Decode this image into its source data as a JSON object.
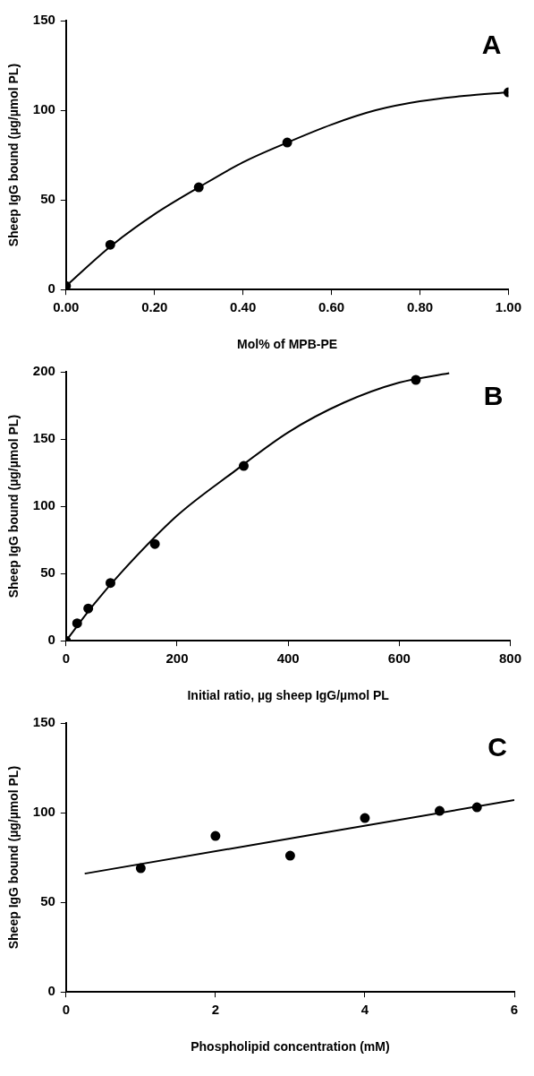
{
  "chart_data": [
    {
      "type": "scatter",
      "xlabel": "Mol% of MPB-PE",
      "ylabel": "Sheep IgG bound (µg/µmol PL)",
      "annotations": [
        "A"
      ],
      "xlim": [
        0,
        1
      ],
      "xticks": [
        {
          "value": 0,
          "label": "0.00"
        },
        {
          "value": 0.2,
          "label": "0.20"
        },
        {
          "value": 0.4,
          "label": "0.40"
        },
        {
          "value": 0.6,
          "label": "0.60"
        },
        {
          "value": 0.8,
          "label": "0.80"
        },
        {
          "value": 1,
          "label": "1.00"
        }
      ],
      "ylim": [
        0,
        150
      ],
      "yticks": [
        0,
        50,
        100,
        150
      ],
      "series": [
        {
          "type": "line",
          "color": "#000000",
          "marker": "none",
          "x": [
            0,
            0.1,
            0.2,
            0.3,
            0.4,
            0.5,
            0.6,
            0.7,
            0.8,
            0.9,
            1.0
          ],
          "values": [
            2,
            24,
            42,
            57,
            71,
            82,
            92,
            100,
            105,
            108,
            110
          ]
        },
        {
          "color": "#000000",
          "marker": "circle",
          "x": [
            0,
            0.1,
            0.3,
            0.5,
            1.0
          ],
          "values": [
            2,
            25,
            57,
            82,
            110
          ]
        }
      ]
    },
    {
      "type": "scatter",
      "xlabel": "Initial ratio, µg sheep IgG/µmol PL",
      "ylabel": "Sheep IgG bound (µg/µmol PL)",
      "annotations": [
        "B"
      ],
      "xlim": [
        0,
        800
      ],
      "xticks": [
        0,
        200,
        400,
        600,
        800
      ],
      "ylim": [
        0,
        200
      ],
      "yticks": [
        0,
        50,
        100,
        150,
        200
      ],
      "series": [
        {
          "type": "line",
          "color": "#000000",
          "marker": "none",
          "x": [
            0,
            50,
            100,
            200,
            300,
            400,
            500,
            600,
            690
          ],
          "values": [
            0,
            27,
            51,
            93,
            125,
            155,
            177,
            192,
            199
          ]
        },
        {
          "color": "#000000",
          "marker": "circle",
          "x": [
            0,
            20,
            40,
            80,
            160,
            320,
            630
          ],
          "values": [
            0,
            13,
            24,
            43,
            72,
            130,
            194
          ]
        }
      ]
    },
    {
      "type": "scatter",
      "xlabel": "Phospholipid concentration (mM)",
      "ylabel": "Sheep IgG bound (µg/µmol PL)",
      "annotations": [
        "C"
      ],
      "xlim": [
        0,
        6
      ],
      "xticks": [
        0,
        2,
        4,
        6
      ],
      "ylim": [
        0,
        150
      ],
      "yticks": [
        0,
        50,
        100,
        150
      ],
      "series": [
        {
          "type": "line",
          "color": "#000000",
          "marker": "none",
          "x": [
            0.25,
            6
          ],
          "values": [
            66,
            107
          ]
        },
        {
          "color": "#000000",
          "marker": "circle",
          "x": [
            1,
            2,
            3,
            4,
            5,
            5.5
          ],
          "values": [
            69,
            87,
            76,
            97,
            101,
            103
          ]
        }
      ]
    }
  ]
}
